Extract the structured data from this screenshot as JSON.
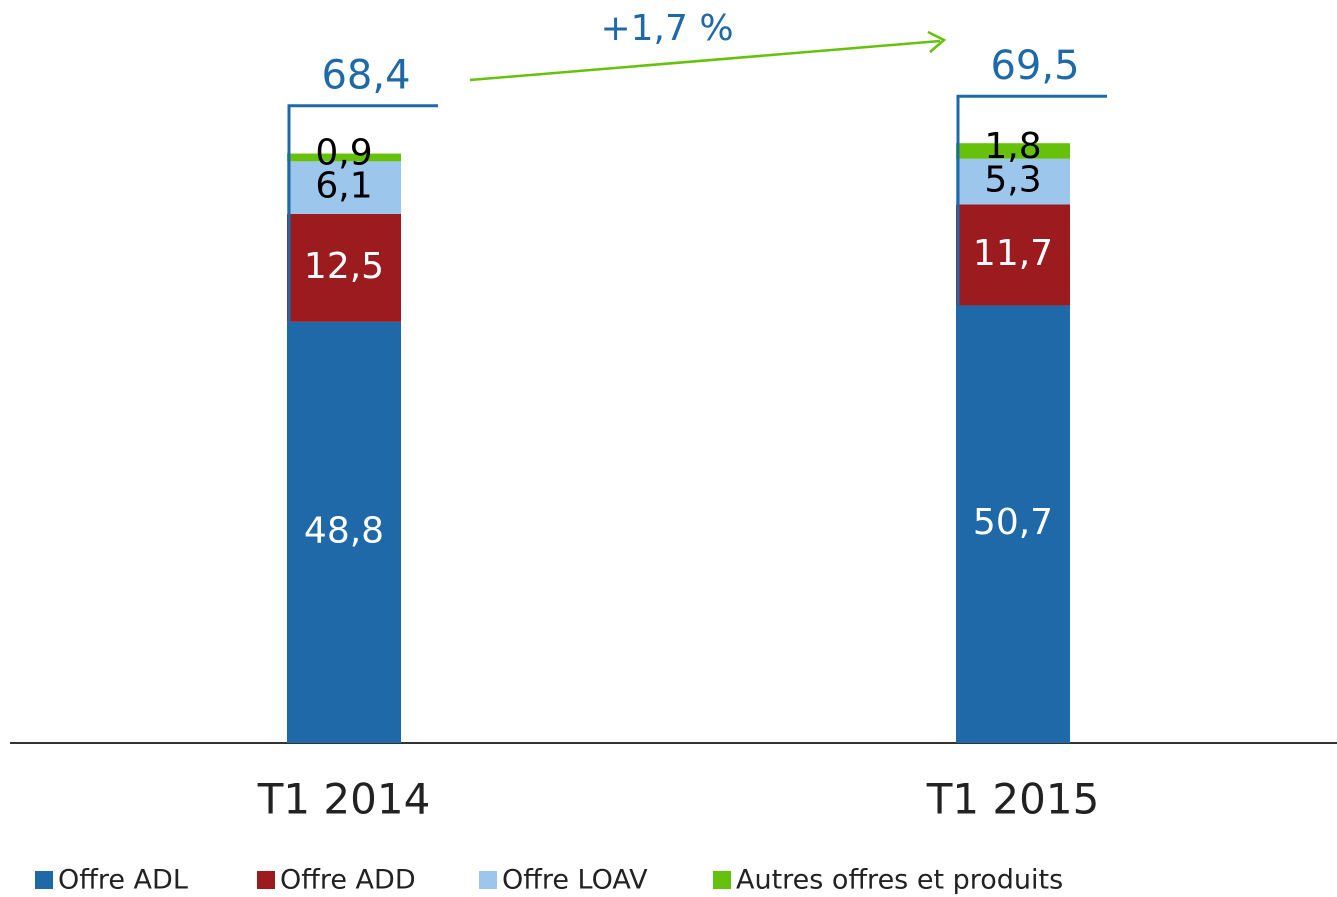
{
  "chart_data": {
    "type": "stacked_bar",
    "categories": [
      "T1 2014",
      "T1 2015"
    ],
    "series": [
      {
        "name": "Offre ADL",
        "color": "#1f69a8",
        "values": [
          48.8,
          50.7
        ],
        "value_labels": [
          "48,8",
          "50,7"
        ]
      },
      {
        "name": "Offre ADD",
        "color": "#9b1b1f",
        "values": [
          12.5,
          11.7
        ],
        "value_labels": [
          "12,5",
          "11,7"
        ]
      },
      {
        "name": "Offre LOAV",
        "color": "#9dc6ec",
        "values": [
          6.1,
          5.3
        ],
        "value_labels": [
          "6,1",
          "5,3"
        ]
      },
      {
        "name": "Autres offres et produits",
        "color": "#66c10a",
        "values": [
          0.9,
          1.8
        ],
        "value_labels": [
          "0,9",
          "1,8"
        ]
      }
    ],
    "totals": [
      68.4,
      69.5
    ],
    "total_labels": [
      "68,4",
      "69,5"
    ],
    "annotation": "+1,7 %"
  }
}
